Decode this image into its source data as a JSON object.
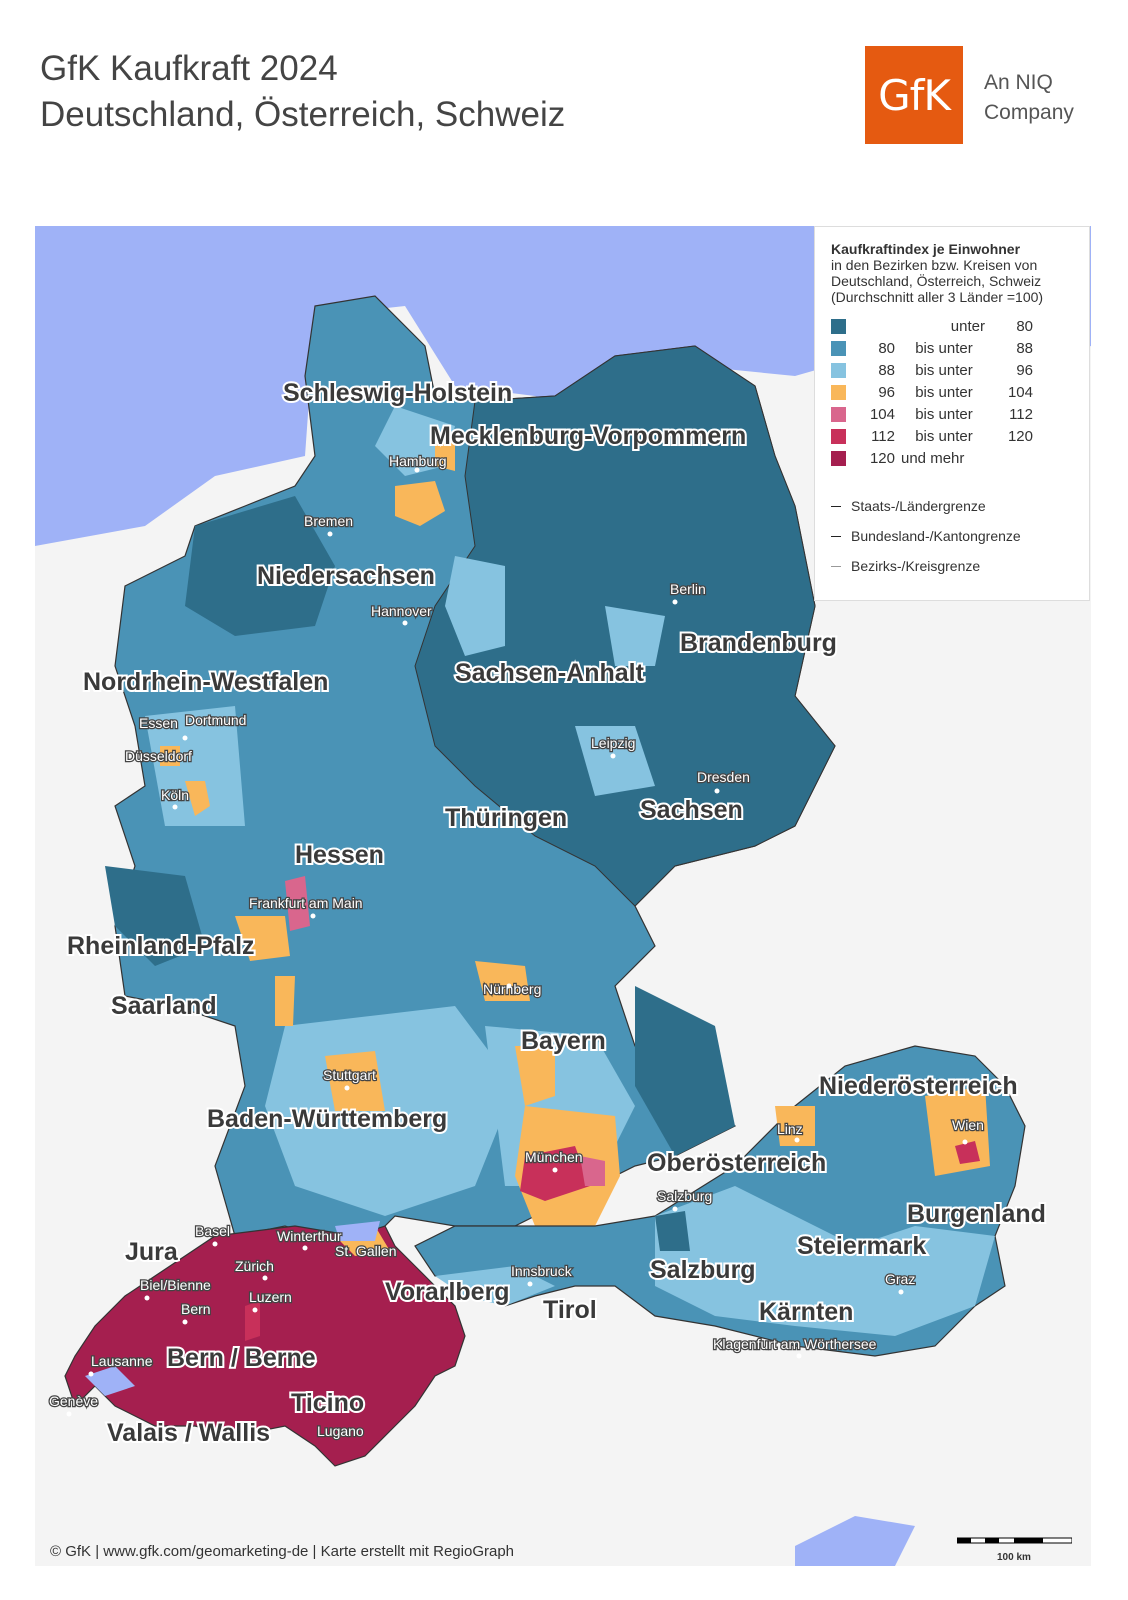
{
  "header": {
    "title_line1": "GfK Kaufkraft 2024",
    "title_line2": "Deutschland, Österreich, Schweiz",
    "logo_text": "GfK",
    "company_line1": "An NIQ",
    "company_line2": "Company"
  },
  "legend": {
    "title": "Kaufkraftindex je Einwohner",
    "subtitle_line1": "in den Bezirken bzw. Kreisen von",
    "subtitle_line2": "Deutschland, Österreich, Schweiz",
    "subtitle_line3": "(Durchschnitt aller 3 Länder =100)",
    "classes": [
      {
        "from": "",
        "sep": "unter",
        "to": "80",
        "color": "#2e6e8a"
      },
      {
        "from": "80",
        "sep": "bis unter",
        "to": "88",
        "color": "#4a93b6"
      },
      {
        "from": "88",
        "sep": "bis unter",
        "to": "96",
        "color": "#86c3e0"
      },
      {
        "from": "96",
        "sep": "bis unter",
        "to": "104",
        "color": "#f9b75a"
      },
      {
        "from": "104",
        "sep": "bis unter",
        "to": "112",
        "color": "#d9668d"
      },
      {
        "from": "112",
        "sep": "bis unter",
        "to": "120",
        "color": "#c8305a"
      },
      {
        "from": "120",
        "sep": "und mehr",
        "to": "",
        "color": "#a51f4f"
      }
    ],
    "lines": [
      {
        "label": "Staats-/Ländergrenze",
        "color": "#222"
      },
      {
        "label": "Bundesland-/Kantongrenze",
        "color": "#222"
      },
      {
        "label": "Bezirks-/Kreisgrenze",
        "color": "#999"
      }
    ]
  },
  "regions": {
    "schleswig_holstein": "Schleswig-Holstein",
    "mecklenburg": "Mecklenburg-Vorpommern",
    "niedersachsen": "Niedersachsen",
    "brandenburg": "Brandenburg",
    "nrw": "Nordrhein-Westfalen",
    "sachsen_anhalt": "Sachsen-Anhalt",
    "thueringen": "Thüringen",
    "sachsen": "Sachsen",
    "hessen": "Hessen",
    "rlp": "Rheinland-Pfalz",
    "saarland": "Saarland",
    "bayern": "Bayern",
    "bw": "Baden-Württemberg",
    "niederoesterreich": "Niederösterreich",
    "oberoesterreich": "Oberösterreich",
    "burgenland": "Burgenland",
    "jura": "Jura",
    "steiermark": "Steiermark",
    "vorarlberg": "Vorarlberg",
    "salzburg_land": "Salzburg",
    "tirol": "Tirol",
    "kaernten": "Kärnten",
    "bern_region": "Bern / Berne",
    "ticino": "Ticino",
    "valais": "Valais / Wallis"
  },
  "cities": {
    "hamburg": "Hamburg",
    "bremen": "Bremen",
    "berlin": "Berlin",
    "hannover": "Hannover",
    "essen": "Essen",
    "dortmund": "Dortmund",
    "duesseldorf": "Düsseldorf",
    "koeln": "Köln",
    "leipzig": "Leipzig",
    "dresden": "Dresden",
    "frankfurt": "Frankfurt am Main",
    "nuernberg": "Nürnberg",
    "stuttgart": "Stuttgart",
    "linz": "Linz",
    "wien": "Wien",
    "muenchen": "München",
    "salzburg": "Salzburg",
    "basel": "Basel",
    "winterthur": "Winterthur",
    "stgallen": "St. Gallen",
    "zuerich": "Zürich",
    "biel": "Biel/Bienne",
    "luzern": "Luzern",
    "bern": "Bern",
    "innsbruck": "Innsbruck",
    "graz": "Graz",
    "lausanne": "Lausanne",
    "klagenfurt": "Klagenfurt am Wörthersee",
    "geneve": "Genève",
    "lugano": "Lugano"
  },
  "footer": {
    "credit": "© GfK | www.gfk.com/geomarketing-de | Karte erstellt mit RegioGraph",
    "scale": "100 km"
  }
}
